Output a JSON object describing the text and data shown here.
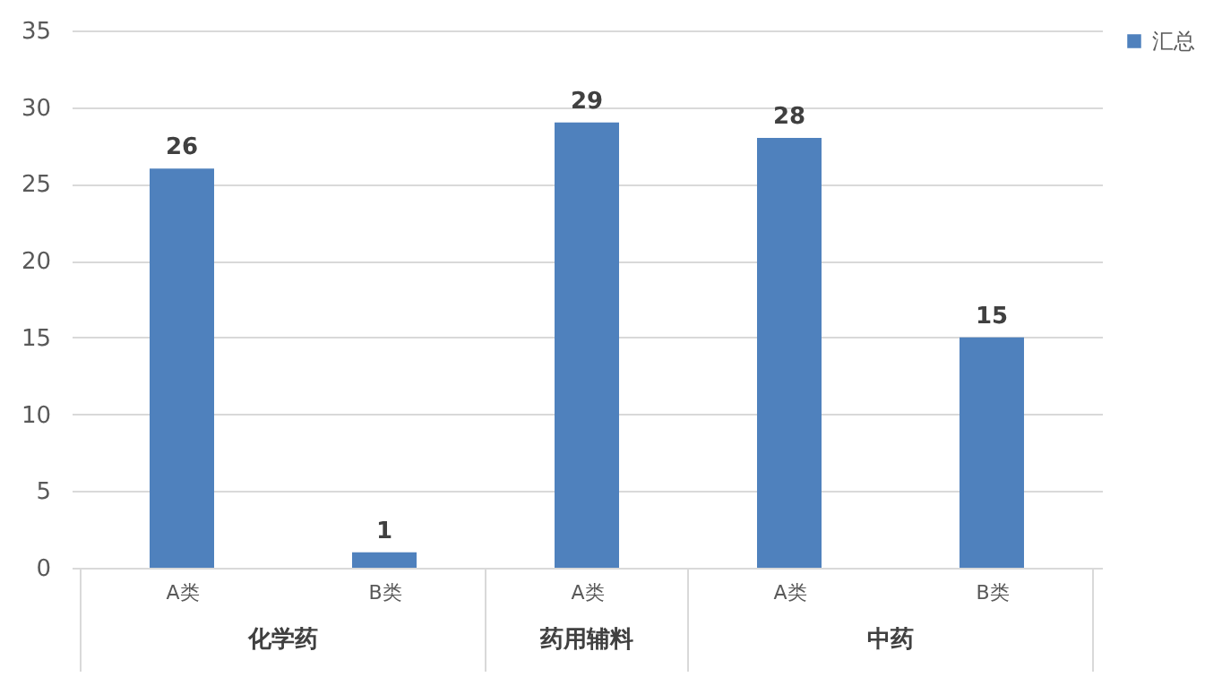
{
  "chart_data": {
    "type": "bar",
    "categories": [
      "A类",
      "B类",
      "A类",
      "A类",
      "B类"
    ],
    "series": [
      {
        "name": "汇总",
        "color": "#4f81bd",
        "values": [
          26,
          1,
          29,
          28,
          15
        ]
      }
    ],
    "annotations": [
      "化学药",
      "药用辅料",
      "中药"
    ],
    "ylim": [
      0,
      35
    ],
    "yticks": [
      0,
      5,
      10,
      15,
      20,
      25,
      30,
      35
    ],
    "grid": "y",
    "legend": "right",
    "data_labels": true
  }
}
